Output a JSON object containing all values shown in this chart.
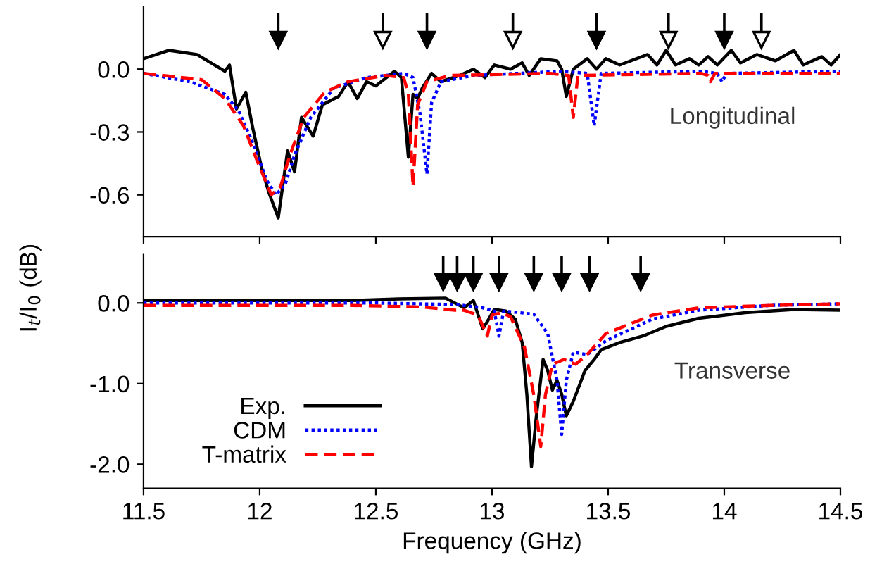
{
  "chart_data": [
    {
      "type": "line",
      "ylabel": "I$_{t}$/I$_{0}$ (dB)",
      "annotations": [
        "Longitudinal"
      ],
      "xlim": [
        11.5,
        14.5
      ],
      "ylim": [
        -0.8,
        0.3
      ],
      "xticks": [
        11.5,
        12,
        12.5,
        13,
        13.5,
        14,
        14.5
      ],
      "yticks": [
        {
          "value": 0.0,
          "label": "0.0"
        },
        {
          "value": -0.3,
          "label": "-0.3"
        },
        {
          "value": -0.6,
          "label": "-0.6"
        }
      ],
      "tick_labels": "y",
      "grid": false,
      "legend": false,
      "series": [
        {
          "color": "#000000",
          "line_style": "solid",
          "x": [
            11.5,
            11.61,
            11.73,
            11.85,
            11.87,
            11.9,
            11.94,
            11.97,
            12.01,
            12.04,
            12.08,
            12.12,
            12.15,
            12.18,
            12.23,
            12.27,
            12.34,
            12.38,
            12.42,
            12.46,
            12.5,
            12.58,
            12.61,
            12.64,
            12.66,
            12.68,
            12.7,
            12.74,
            12.78,
            12.86,
            12.92,
            12.97,
            13.01,
            13.08,
            13.13,
            13.16,
            13.21,
            13.28,
            13.3,
            13.32,
            13.35,
            13.41,
            13.45,
            13.49,
            13.55,
            13.67,
            13.71,
            13.75,
            13.79,
            13.85,
            13.89,
            13.93,
            13.97,
            14.03,
            14.07,
            14.14,
            14.22,
            14.3,
            14.34,
            14.42,
            14.46,
            14.5
          ],
          "values": [
            0.05,
            0.09,
            0.07,
            -0.01,
            0.02,
            -0.19,
            -0.11,
            -0.28,
            -0.48,
            -0.59,
            -0.71,
            -0.39,
            -0.49,
            -0.23,
            -0.32,
            -0.17,
            -0.13,
            -0.06,
            -0.14,
            -0.06,
            -0.08,
            -0.01,
            -0.04,
            -0.42,
            -0.12,
            -0.14,
            -0.09,
            -0.02,
            -0.06,
            -0.03,
            0.0,
            -0.04,
            0.02,
            0.0,
            0.03,
            -0.03,
            0.05,
            0.04,
            0.0,
            -0.13,
            0.0,
            0.05,
            0.0,
            0.05,
            0.02,
            0.07,
            0.02,
            0.09,
            0.02,
            0.05,
            0.02,
            0.06,
            0.02,
            0.09,
            0.03,
            0.07,
            0.04,
            0.09,
            0.02,
            0.06,
            0.02,
            0.07
          ]
        },
        {
          "color": "#0000ff",
          "line_style": "dotted",
          "x": [
            11.5,
            11.7,
            11.85,
            11.91,
            11.97,
            12.03,
            12.07,
            12.11,
            12.15,
            12.22,
            12.32,
            12.46,
            12.62,
            12.66,
            12.69,
            12.72,
            12.74,
            12.78,
            12.92,
            13.3,
            13.41,
            13.44,
            13.47,
            13.9,
            13.97,
            13.99,
            14.01,
            14.5
          ],
          "values": [
            -0.02,
            -0.06,
            -0.12,
            -0.2,
            -0.35,
            -0.53,
            -0.6,
            -0.55,
            -0.41,
            -0.23,
            -0.09,
            -0.04,
            -0.02,
            -0.04,
            -0.21,
            -0.5,
            -0.16,
            -0.06,
            -0.03,
            -0.01,
            -0.02,
            -0.27,
            -0.02,
            -0.01,
            -0.02,
            -0.06,
            -0.02,
            -0.01
          ]
        },
        {
          "color": "#ff0000",
          "line_style": "dashed",
          "x": [
            11.5,
            11.75,
            11.85,
            11.93,
            11.99,
            12.05,
            12.09,
            12.13,
            12.19,
            12.28,
            12.38,
            12.54,
            12.62,
            12.64,
            12.66,
            12.68,
            12.72,
            12.82,
            13.25,
            13.33,
            13.35,
            13.37,
            13.9,
            13.93,
            13.94,
            13.96,
            14.5
          ],
          "values": [
            -0.02,
            -0.05,
            -0.14,
            -0.27,
            -0.44,
            -0.6,
            -0.56,
            -0.41,
            -0.23,
            -0.11,
            -0.06,
            -0.03,
            -0.04,
            -0.12,
            -0.56,
            -0.17,
            -0.06,
            -0.03,
            -0.02,
            -0.03,
            -0.23,
            -0.03,
            -0.02,
            -0.03,
            -0.06,
            -0.02,
            -0.02
          ]
        },
        {
          "type": "scatter",
          "marker": "triangle",
          "color": "#000000",
          "x": [
            12.08,
            12.72,
            13.45,
            14.0
          ],
          "values": [
            0.14,
            0.14,
            0.14,
            0.14
          ],
          "errors": [
            [
              0.14,
              0.27
            ],
            [
              0.14,
              0.27
            ],
            [
              0.14,
              0.27
            ],
            [
              0.14,
              0.27
            ]
          ]
        },
        {
          "type": "scatter",
          "marker": "triangle",
          "color": "#ffffff",
          "x": [
            12.53,
            13.09,
            13.76,
            14.16
          ],
          "values": [
            0.14,
            0.14,
            0.14,
            0.14
          ],
          "errors": [
            [
              0.14,
              0.27
            ],
            [
              0.14,
              0.27
            ],
            [
              0.14,
              0.27
            ],
            [
              0.14,
              0.27
            ]
          ]
        }
      ]
    },
    {
      "type": "line",
      "xlabel": "Frequency (GHz)",
      "annotations": [
        "Transverse"
      ],
      "xlim": [
        11.5,
        14.5
      ],
      "ylim": [
        -2.3,
        0.6
      ],
      "xticks": [
        11.5,
        12,
        12.5,
        13,
        13.5,
        14,
        14.5
      ],
      "yticks": [
        {
          "value": 0.0,
          "label": "0.0"
        },
        {
          "value": -1.0,
          "label": "-1.0"
        },
        {
          "value": -2.0,
          "label": "-2.0"
        }
      ],
      "grid": false,
      "legend": "bottom left",
      "series": [
        {
          "name": "Exp.",
          "color": "#000000",
          "line_style": "solid",
          "x": [
            11.5,
            11.8,
            12.1,
            12.4,
            12.6,
            12.8,
            12.88,
            12.92,
            12.96,
            12.98,
            13.01,
            13.06,
            13.1,
            13.13,
            13.15,
            13.17,
            13.19,
            13.22,
            13.24,
            13.26,
            13.28,
            13.3,
            13.32,
            13.35,
            13.4,
            13.44,
            13.47,
            13.55,
            13.65,
            13.75,
            13.89,
            14.09,
            14.3,
            14.5
          ],
          "values": [
            0.03,
            0.03,
            0.03,
            0.03,
            0.05,
            0.06,
            -0.06,
            0.03,
            -0.32,
            -0.23,
            -0.08,
            -0.1,
            -0.2,
            -0.49,
            -1.13,
            -2.03,
            -1.43,
            -0.7,
            -0.84,
            -1.08,
            -0.96,
            -1.13,
            -1.4,
            -1.22,
            -0.84,
            -0.7,
            -0.58,
            -0.49,
            -0.41,
            -0.29,
            -0.19,
            -0.12,
            -0.08,
            -0.09
          ]
        },
        {
          "name": "CDM",
          "color": "#0000ff",
          "line_style": "dotted",
          "x": [
            11.5,
            12.5,
            12.85,
            12.96,
            13.01,
            13.03,
            13.05,
            13.12,
            13.18,
            13.24,
            13.28,
            13.3,
            13.32,
            13.35,
            13.41,
            13.49,
            13.69,
            13.89,
            14.2,
            14.5
          ],
          "values": [
            0.0,
            0.0,
            -0.02,
            -0.06,
            -0.1,
            -0.41,
            -0.1,
            -0.12,
            -0.14,
            -0.38,
            -0.96,
            -1.63,
            -0.96,
            -0.61,
            -0.64,
            -0.47,
            -0.2,
            -0.09,
            -0.03,
            -0.01
          ]
        },
        {
          "name": "T-matrix",
          "color": "#ff0000",
          "line_style": "dashed",
          "x": [
            11.5,
            12.4,
            12.7,
            12.84,
            12.88,
            12.94,
            12.98,
            13.0,
            13.04,
            13.08,
            13.14,
            13.18,
            13.21,
            13.23,
            13.26,
            13.31,
            13.36,
            13.41,
            13.49,
            13.69,
            13.89,
            14.2,
            14.5
          ],
          "values": [
            -0.03,
            -0.03,
            -0.05,
            -0.09,
            -0.09,
            -0.15,
            -0.41,
            -0.15,
            -0.12,
            -0.17,
            -0.55,
            -1.14,
            -1.78,
            -1.14,
            -0.76,
            -0.7,
            -0.76,
            -0.64,
            -0.38,
            -0.15,
            -0.06,
            -0.03,
            -0.01
          ]
        },
        {
          "type": "scatter",
          "marker": "triangle",
          "color": "#000000",
          "x": [
            12.79,
            12.85,
            12.92,
            13.03,
            13.18,
            13.3,
            13.42,
            13.64
          ],
          "values": [
            0.26,
            0.26,
            0.26,
            0.26,
            0.26,
            0.26,
            0.26,
            0.26
          ],
          "errors": [
            [
              0.26,
              0.58
            ],
            [
              0.26,
              0.58
            ],
            [
              0.26,
              0.58
            ],
            [
              0.26,
              0.58
            ],
            [
              0.26,
              0.58
            ],
            [
              0.26,
              0.58
            ],
            [
              0.26,
              0.58
            ],
            [
              0.26,
              0.58
            ]
          ]
        }
      ]
    }
  ]
}
